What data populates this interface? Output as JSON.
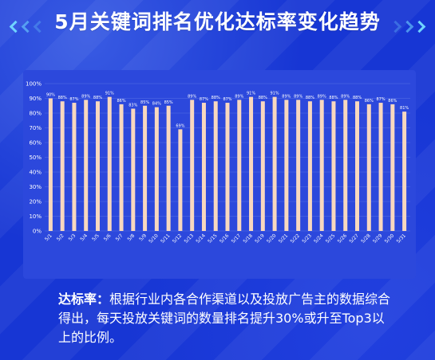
{
  "title": "5月关键词排名优化达标率变化趋势",
  "note": {
    "lead": "达标率：",
    "text": "根据行业内各合作渠道以及投放广告主的数据综合得出，每天投放关键词的数量排名提升30%或升至Top3以上的比例。"
  },
  "colors": {
    "background": "#1736d4",
    "panel": "#2c48dc",
    "bar": "#f8d8bf",
    "grid": "#5670e6"
  },
  "chart_data": {
    "type": "bar",
    "categories": [
      "5/1",
      "5/2",
      "5/3",
      "5/4",
      "5/5",
      "5/6",
      "5/7",
      "5/8",
      "5/9",
      "5/10",
      "5/11",
      "5/12",
      "5/13",
      "5/14",
      "5/15",
      "5/16",
      "5/17",
      "5/18",
      "5/19",
      "5/20",
      "5/21",
      "5/22",
      "5/23",
      "5/24",
      "5/25",
      "5/26",
      "5/27",
      "5/28",
      "5/29",
      "5/30",
      "5/31"
    ],
    "values": [
      90,
      88,
      87,
      89,
      88,
      91,
      86,
      83,
      85,
      84,
      85,
      69,
      89,
      87,
      88,
      87,
      89,
      91,
      88,
      91,
      89,
      89,
      88,
      89,
      88,
      89,
      88,
      86,
      87,
      86,
      81
    ],
    "value_labels": [
      "90%",
      "88%",
      "87%",
      "89%",
      "88%",
      "91%",
      "86%",
      "83%",
      "85%",
      "84%",
      "85%",
      "69%",
      "89%",
      "87%",
      "88%",
      "87%",
      "89%",
      "91%",
      "88%",
      "91%",
      "89%",
      "89%",
      "88%",
      "89%",
      "88%",
      "89%",
      "88%",
      "86%",
      "87%",
      "86%",
      "81%"
    ],
    "y_ticks": [
      "0%",
      "10%",
      "20%",
      "30%",
      "40%",
      "50%",
      "60%",
      "70%",
      "80%",
      "90%",
      "100%"
    ],
    "ylim": [
      0,
      100
    ],
    "grid": true
  }
}
